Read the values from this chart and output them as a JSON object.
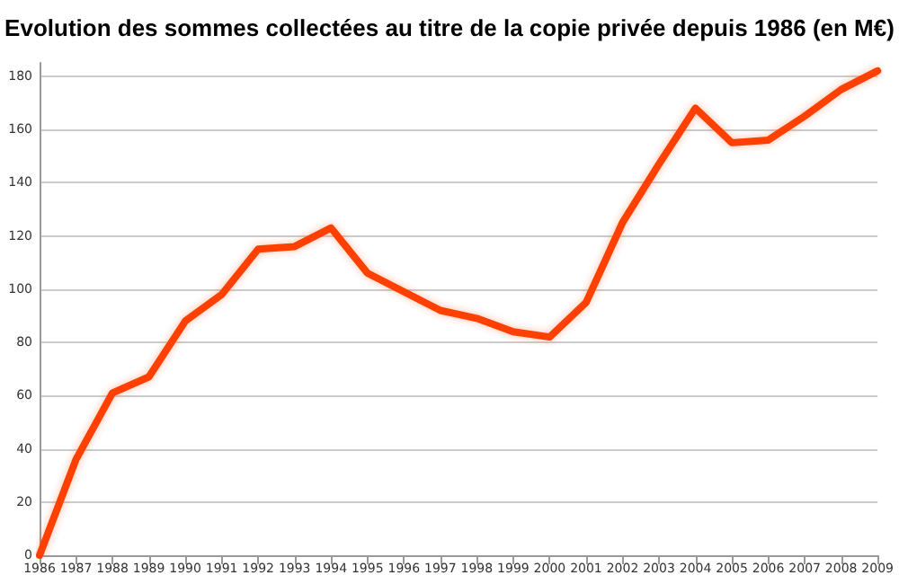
{
  "chart_data": {
    "type": "line",
    "title": "Evolution des sommes collectées au titre de la copie privée depuis 1986 (en M€)",
    "categories": [
      "1986",
      "1987",
      "1988",
      "1989",
      "1990",
      "1991",
      "1992",
      "1993",
      "1994",
      "1995",
      "1996",
      "1997",
      "1998",
      "1999",
      "2000",
      "2001",
      "2002",
      "2003",
      "2004",
      "2005",
      "2006",
      "2007",
      "2008",
      "2009"
    ],
    "series": [
      {
        "color": "#ff4000",
        "values": [
          0,
          36,
          61,
          67,
          88,
          98,
          115,
          116,
          123,
          106,
          99,
          92,
          89,
          84,
          82,
          95,
          125,
          147,
          168,
          155,
          156,
          165,
          175,
          182
        ]
      }
    ],
    "ylim": [
      0,
      185
    ],
    "yticks": [
      0,
      20,
      40,
      60,
      80,
      100,
      120,
      140,
      160,
      180
    ],
    "grid": "y",
    "marker": "none",
    "line_style": "solid"
  }
}
